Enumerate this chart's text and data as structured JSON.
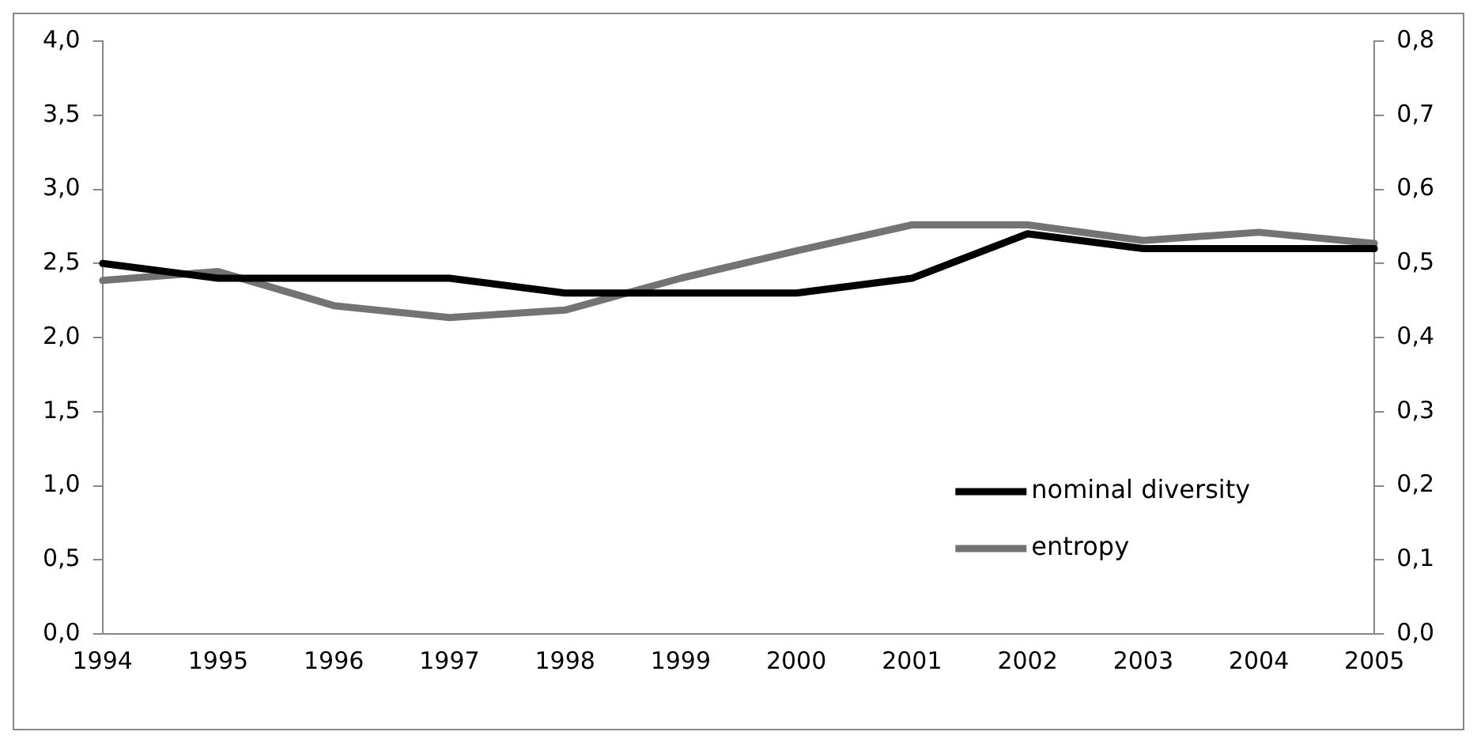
{
  "chart_data": {
    "type": "line",
    "categories": [
      "1994",
      "1995",
      "1996",
      "1997",
      "1998",
      "1999",
      "2000",
      "2001",
      "2002",
      "2003",
      "2004",
      "2005"
    ],
    "series": [
      {
        "name": "nominal diversity",
        "color": "#000000",
        "values": [
          2.5,
          2.4,
          2.4,
          2.4,
          2.3,
          2.3,
          2.3,
          2.4,
          2.7,
          2.6,
          2.6,
          2.6
        ]
      },
      {
        "name": "entropy",
        "color": "#737373",
        "axis": "y2",
        "values": [
          0.477,
          0.489,
          0.443,
          0.427,
          0.437,
          0.48,
          0.517,
          0.552,
          0.552,
          0.531,
          0.542,
          0.527
        ]
      }
    ],
    "ylim": [
      0,
      4
    ],
    "yticks": [
      {
        "value": 0,
        "label": "0,0"
      },
      {
        "value": 0.5,
        "label": "0,5"
      },
      {
        "value": 1,
        "label": "1,0"
      },
      {
        "value": 1.5,
        "label": "1,5"
      },
      {
        "value": 2,
        "label": "2,0"
      },
      {
        "value": 2.5,
        "label": "2,5"
      },
      {
        "value": 3,
        "label": "3,0"
      },
      {
        "value": 3.5,
        "label": "3,5"
      },
      {
        "value": 4,
        "label": "4,0"
      }
    ],
    "y2lim": [
      0,
      0.8
    ],
    "y2ticks": [
      {
        "value": 0,
        "label": "0,0"
      },
      {
        "value": 0.1,
        "label": "0,1"
      },
      {
        "value": 0.2,
        "label": "0,2"
      },
      {
        "value": 0.3,
        "label": "0,3"
      },
      {
        "value": 0.4,
        "label": "0,4"
      },
      {
        "value": 0.5,
        "label": "0,5"
      },
      {
        "value": 0.6,
        "label": "0,6"
      },
      {
        "value": 0.7,
        "label": "0,7"
      },
      {
        "value": 0.8,
        "label": "0,8"
      }
    ],
    "grid": false,
    "legend": "bottom right",
    "marker": "none",
    "line_style": "solid"
  }
}
